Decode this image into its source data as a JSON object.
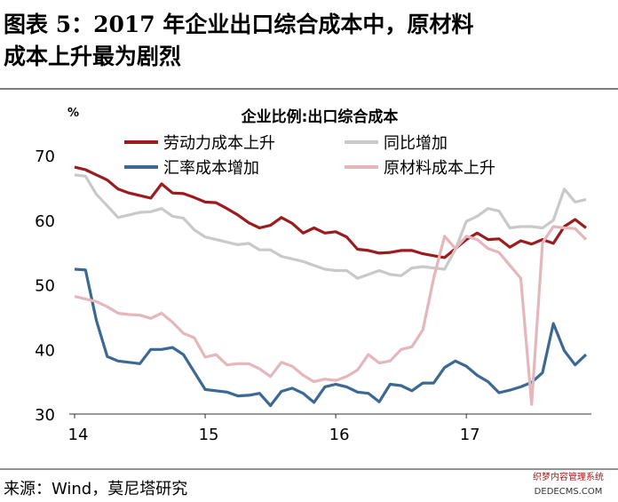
{
  "header": {
    "title": [
      "图表 5：2017 年企业出口综合成本中，原材料",
      "成本上升最为剧烈"
    ]
  },
  "chart_data": {
    "type": "line",
    "title": "企业比例:出口综合成本",
    "ylabel": "%",
    "categories": [
      "14",
      null,
      null,
      null,
      null,
      null,
      null,
      null,
      null,
      null,
      null,
      null,
      "15",
      null,
      null,
      null,
      null,
      null,
      null,
      null,
      null,
      null,
      null,
      null,
      "16",
      null,
      null,
      null,
      null,
      null,
      null,
      null,
      null,
      null,
      null,
      null,
      "17",
      null,
      null,
      null,
      null,
      null,
      null,
      null,
      null,
      null,
      null,
      null
    ],
    "ylim": [
      30,
      70
    ],
    "yticks": [
      30,
      40,
      50,
      60,
      70
    ],
    "grid": false,
    "series": [
      {
        "name": "劳动力成本上升",
        "color": "#9b1c1f",
        "values": [
          68.2,
          67.8,
          67.0,
          66.2,
          64.8,
          64.2,
          63.8,
          63.4,
          65.6,
          64.2,
          64.1,
          63.5,
          62.8,
          62.7,
          61.8,
          60.8,
          59.6,
          58.8,
          59.2,
          60.4,
          59.5,
          58.0,
          58.8,
          58.0,
          58.2,
          57.4,
          55.5,
          55.3,
          54.9,
          55.0,
          55.3,
          55.3,
          54.8,
          54.5,
          54.2,
          55.6,
          57.0,
          58.0,
          57.0,
          57.1,
          55.8,
          56.8,
          56.3,
          57.0,
          56.4,
          59.0,
          60.1,
          58.8
        ]
      },
      {
        "name": "同比增加",
        "color": "#c9c9c9",
        "values": [
          67.0,
          66.8,
          64.0,
          62.2,
          60.4,
          60.8,
          61.2,
          61.3,
          61.8,
          60.6,
          60.3,
          58.5,
          57.4,
          57.0,
          56.6,
          56.2,
          56.4,
          55.4,
          55.4,
          54.4,
          54.0,
          53.6,
          53.0,
          52.4,
          52.2,
          52.2,
          51.0,
          51.6,
          52.2,
          51.6,
          51.4,
          52.6,
          52.8,
          52.6,
          52.4,
          55.5,
          59.8,
          60.6,
          61.8,
          61.4,
          58.8,
          59.0,
          59.0,
          58.8,
          60.0,
          64.8,
          62.8,
          63.2
        ]
      },
      {
        "name": "汇率成本增加",
        "color": "#3c6894",
        "values": [
          52.4,
          52.3,
          44.5,
          38.9,
          38.2,
          38.0,
          37.8,
          40.0,
          40.0,
          40.3,
          39.2,
          36.5,
          33.8,
          33.6,
          33.4,
          32.8,
          32.9,
          33.2,
          31.3,
          33.5,
          34.0,
          33.2,
          31.8,
          34.2,
          34.6,
          34.2,
          33.4,
          33.2,
          31.9,
          34.6,
          34.4,
          33.6,
          34.8,
          34.8,
          37.2,
          38.2,
          37.4,
          36.0,
          35.0,
          33.3,
          33.7,
          34.2,
          34.9,
          36.4,
          44.0,
          39.8,
          37.6,
          39.2
        ]
      },
      {
        "name": "原材料成本上升",
        "color": "#e3b7bb",
        "values": [
          48.2,
          47.8,
          47.4,
          46.6,
          45.6,
          45.4,
          45.3,
          44.8,
          45.6,
          44.2,
          42.5,
          41.8,
          38.8,
          39.2,
          37.6,
          37.8,
          37.8,
          37.0,
          35.8,
          38.0,
          37.4,
          36.0,
          35.0,
          35.4,
          35.2,
          35.8,
          36.8,
          39.2,
          37.9,
          38.2,
          40.0,
          40.4,
          43.0,
          51.0,
          57.5,
          55.6,
          57.5,
          57.0,
          55.6,
          55.0,
          53.0,
          51.0,
          31.5,
          56.5,
          59.0,
          58.8,
          58.7,
          57.0
        ]
      }
    ]
  },
  "footer": {
    "source": "来源：Wind，莫尼塔研究",
    "watermark": [
      "织梦内容管理系统",
      "DEDECMS.COM"
    ]
  }
}
